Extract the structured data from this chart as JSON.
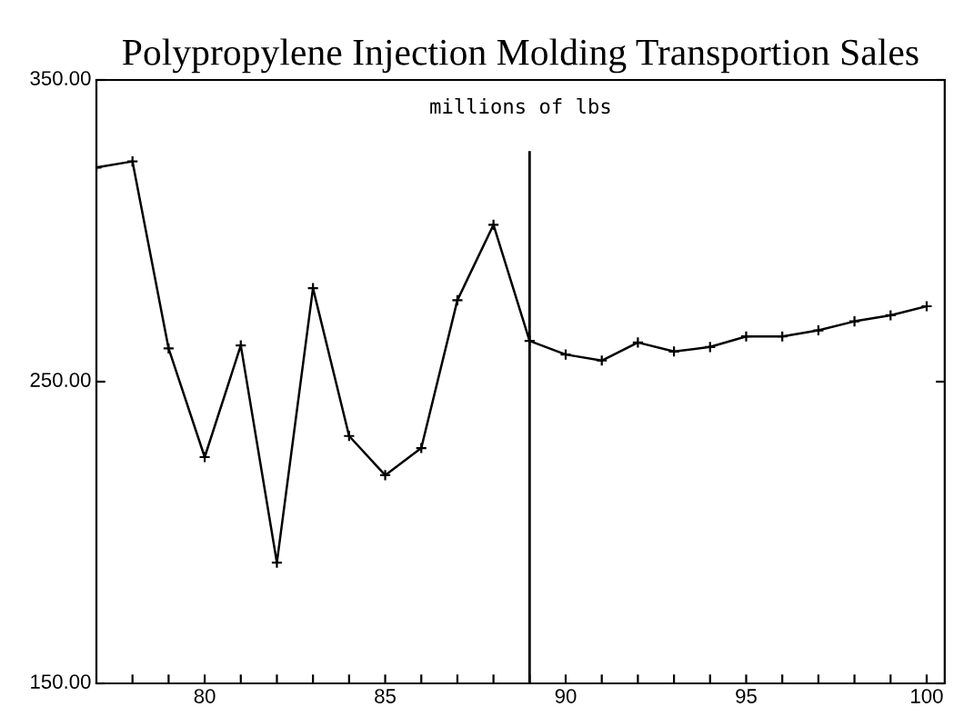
{
  "chart_data": {
    "type": "line",
    "title": "Polypropylene Injection Molding Transportion Sales",
    "annotations": [
      "millions of lbs"
    ],
    "x": [
      77,
      78,
      79,
      80,
      81,
      82,
      83,
      84,
      85,
      86,
      87,
      88,
      89,
      90,
      91,
      92,
      93,
      94,
      95,
      96,
      97,
      98,
      99,
      100
    ],
    "series": [
      {
        "color": "#000000",
        "values": [
          321,
          323,
          261,
          225,
          262,
          190,
          281,
          232,
          219,
          228,
          277,
          302,
          263.5,
          259,
          257,
          263,
          260,
          261.5,
          265,
          265,
          267,
          270,
          272,
          275
        ]
      }
    ],
    "xlim": [
      77,
      100.5
    ],
    "ylim": [
      150,
      350
    ],
    "xticks": [
      {
        "value": 78,
        "label": null
      },
      {
        "value": 79,
        "label": null
      },
      80,
      {
        "value": 81,
        "label": null
      },
      {
        "value": 82,
        "label": null
      },
      {
        "value": 83,
        "label": null
      },
      {
        "value": 84,
        "label": null
      },
      85,
      {
        "value": 86,
        "label": null
      },
      {
        "value": 87,
        "label": null
      },
      {
        "value": 88,
        "label": null
      },
      {
        "value": 89,
        "label": null
      },
      90,
      {
        "value": 91,
        "label": null
      },
      {
        "value": 92,
        "label": null
      },
      {
        "value": 93,
        "label": null
      },
      {
        "value": 94,
        "label": null
      },
      95,
      {
        "value": 96,
        "label": null
      },
      {
        "value": 97,
        "label": null
      },
      {
        "value": 98,
        "label": null
      },
      {
        "value": 99,
        "label": null
      },
      100
    ],
    "yticks": [
      {
        "value": 150,
        "label": "150.00"
      },
      {
        "value": 250,
        "label": "250.00"
      },
      {
        "value": 350,
        "label": "350.00"
      }
    ],
    "ref_lines": [
      {
        "axis": "x",
        "value": 89,
        "color": "#000000"
      }
    ],
    "marker": "cross",
    "line_style": "solid",
    "grid": false,
    "legend": false
  }
}
